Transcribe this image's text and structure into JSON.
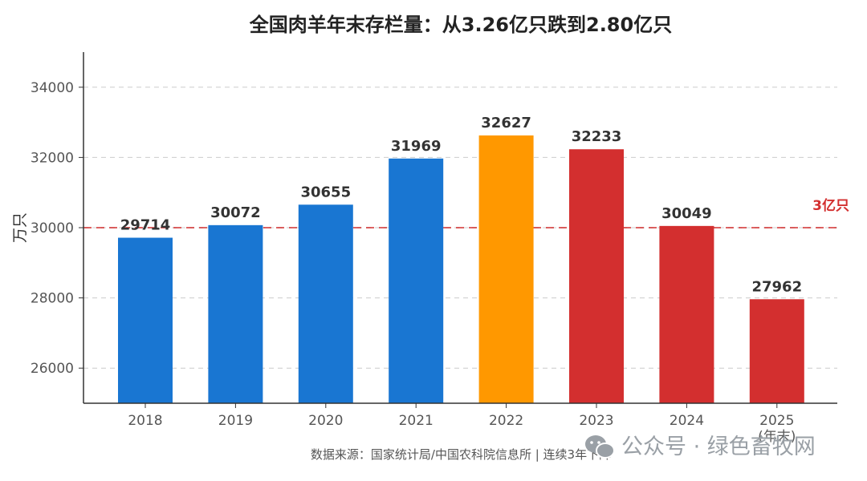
{
  "chart_data": {
    "type": "bar",
    "title": "全国肉羊年末存栏量：从3.26亿只跌到2.80亿只",
    "ylabel": "万只",
    "xlabel": "",
    "categories": [
      "2018",
      "2019",
      "2020",
      "2021",
      "2022",
      "2023",
      "2024",
      "2025"
    ],
    "category_sublabels": [
      "",
      "",
      "",
      "",
      "",
      "",
      "",
      "(年末)"
    ],
    "values": [
      29714,
      30072,
      30655,
      31969,
      32627,
      32233,
      30049,
      27962
    ],
    "bar_colors": [
      "#1976d2",
      "#1976d2",
      "#1976d2",
      "#1976d2",
      "#ff9800",
      "#d32f2f",
      "#d32f2f",
      "#d32f2f"
    ],
    "ylim": [
      25000,
      35000
    ],
    "yticks": [
      26000,
      28000,
      30000,
      32000,
      34000
    ],
    "grid": true,
    "reference_line": {
      "value": 30000,
      "label": "3亿只",
      "color": "#d32f2f"
    }
  },
  "footer": {
    "source": "数据来源：国家统计局/中国农科院信息所 | 连续3年下降",
    "watermark": "公众号 · 绿色畜牧网"
  },
  "colors": {
    "axis": "#333333",
    "grid": "#cccccc",
    "wechat_icon": "#9aa0a6"
  }
}
